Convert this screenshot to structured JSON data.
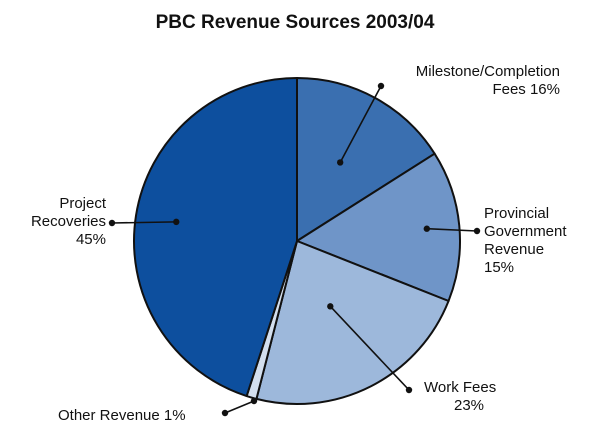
{
  "chart_data": {
    "type": "pie",
    "title": "PBC Revenue Sources 2003/04",
    "slices": [
      {
        "label": "Milestone/Completion Fees",
        "value": 16,
        "value_label": "16%",
        "color": "#3a6fb0"
      },
      {
        "label": "Provincial Government Revenue",
        "value": 15,
        "value_label": "15%",
        "color": "#6f95c8"
      },
      {
        "label": "Work Fees",
        "value": 23,
        "value_label": "23%",
        "color": "#9db8db"
      },
      {
        "label": "Other Revenue",
        "value": 1,
        "value_label": "1%",
        "color": "#d3dfee"
      },
      {
        "label": "Project Recoveries",
        "value": 45,
        "value_label": "45%",
        "color": "#0d4f9e"
      }
    ],
    "start": "12 o'clock",
    "direction": "clockwise",
    "legend": "none (callout labels)"
  },
  "labels": {
    "milestone_line1": "Milestone/Completion",
    "milestone_line2": "Fees 16%",
    "provincial_line1": "Provincial",
    "provincial_line2": "Government",
    "provincial_line3": "Revenue",
    "provincial_line4": "15%",
    "work_line1": "Work Fees",
    "work_line2": "23%",
    "other_line1": "Other Revenue 1%",
    "project_line1": "Project",
    "project_line2": "Recoveries",
    "project_line3": "45%"
  }
}
